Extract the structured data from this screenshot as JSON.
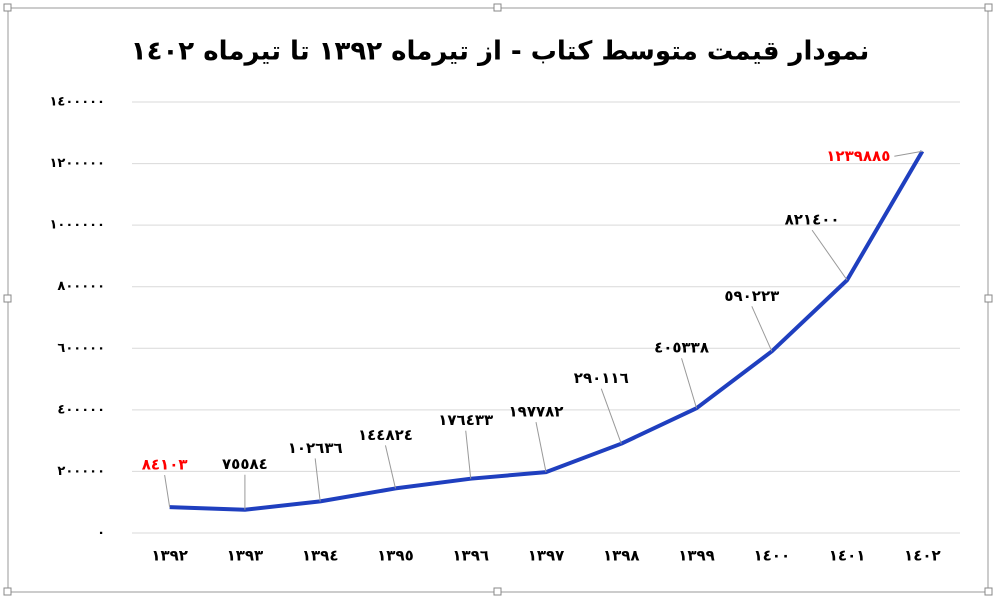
{
  "chart_data": {
    "type": "line",
    "title": "نمودار قیمت متوسط کتاب - از تیرماه ١٣٩٢ تا تیرماه ١٤٠٢",
    "categories": [
      "١٣٩٢",
      "١٣٩٣",
      "١٣٩٤",
      "١٣٩٥",
      "١٣٩٦",
      "١٣٩٧",
      "١٣٩٨",
      "١٣٩٩",
      "١٤٠٠",
      "١٤٠١",
      "١٤٠٢"
    ],
    "values": [
      84103,
      75584,
      102636,
      144824,
      176433,
      197782,
      290116,
      405338,
      590223,
      821400,
      1239885
    ],
    "value_labels": [
      "٨٤١٠٣",
      "٧٥٥٨٤",
      "١٠٢٦٣٦",
      "١٤٤٨٢٤",
      "١٧٦٤٣٣",
      "١٩٧٧٨٢",
      "٢٩٠١١٦",
      "٤٠٥٣٣٨",
      "٥٩٠٢٢٣",
      "٨٢١٤٠٠",
      "١٢٣٩٨٨٥"
    ],
    "value_label_colors": [
      "#ff0000",
      "#000000",
      "#000000",
      "#000000",
      "#000000",
      "#000000",
      "#000000",
      "#000000",
      "#000000",
      "#000000",
      "#ff0000"
    ],
    "color": "#1f3fbf",
    "ylim": [
      0,
      1400000
    ],
    "yticks": [
      {
        "value": 0,
        "label": "٠"
      },
      {
        "value": 200000,
        "label": "٢٠٠٠٠٠"
      },
      {
        "value": 400000,
        "label": "٤٠٠٠٠٠"
      },
      {
        "value": 600000,
        "label": "٦٠٠٠٠٠"
      },
      {
        "value": 800000,
        "label": "٨٠٠٠٠٠"
      },
      {
        "value": 1000000,
        "label": "١٠٠٠٠٠٠"
      },
      {
        "value": 1200000,
        "label": "١٢٠٠٠٠٠"
      },
      {
        "value": 1400000,
        "label": "١٤٠٠٠٠٠"
      }
    ],
    "grid": true
  }
}
